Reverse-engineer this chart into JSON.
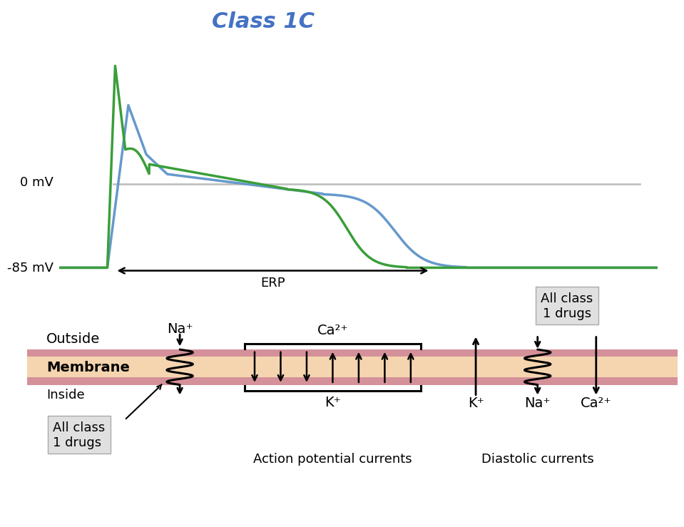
{
  "title": "Class 1C",
  "title_color": "#4472C4",
  "bg_color": "#ffffff",
  "green_color": "#3a9e3a",
  "blue_color": "#6699cc",
  "zero_mv_label": "0 mV",
  "neg85_mv_label": "-85 mV",
  "erp_label": "ERP",
  "outside_label": "Outside",
  "membrane_label": "Membrane",
  "inside_label": "Inside",
  "all_class_label": "All class\n1 drugs",
  "all_class_label2": "All class\n1 drugs",
  "na_label": "Na⁺",
  "ca_label": "Ca²⁺",
  "k_label": "K⁺",
  "na_label2": "Na⁺",
  "ca_label2": "Ca²⁺",
  "k_label2": "K⁺",
  "action_potential_label": "Action potential currents",
  "diastolic_label": "Diastolic currents",
  "membrane_color_outer": "#d4919a",
  "membrane_color_inner": "#f5d5b0",
  "zero_line_color": "#bbbbbb",
  "arrow_color": "#1a1a1a",
  "ap_xlim": [
    0,
    1.0
  ],
  "ap_ylim": [
    -110,
    180
  ]
}
